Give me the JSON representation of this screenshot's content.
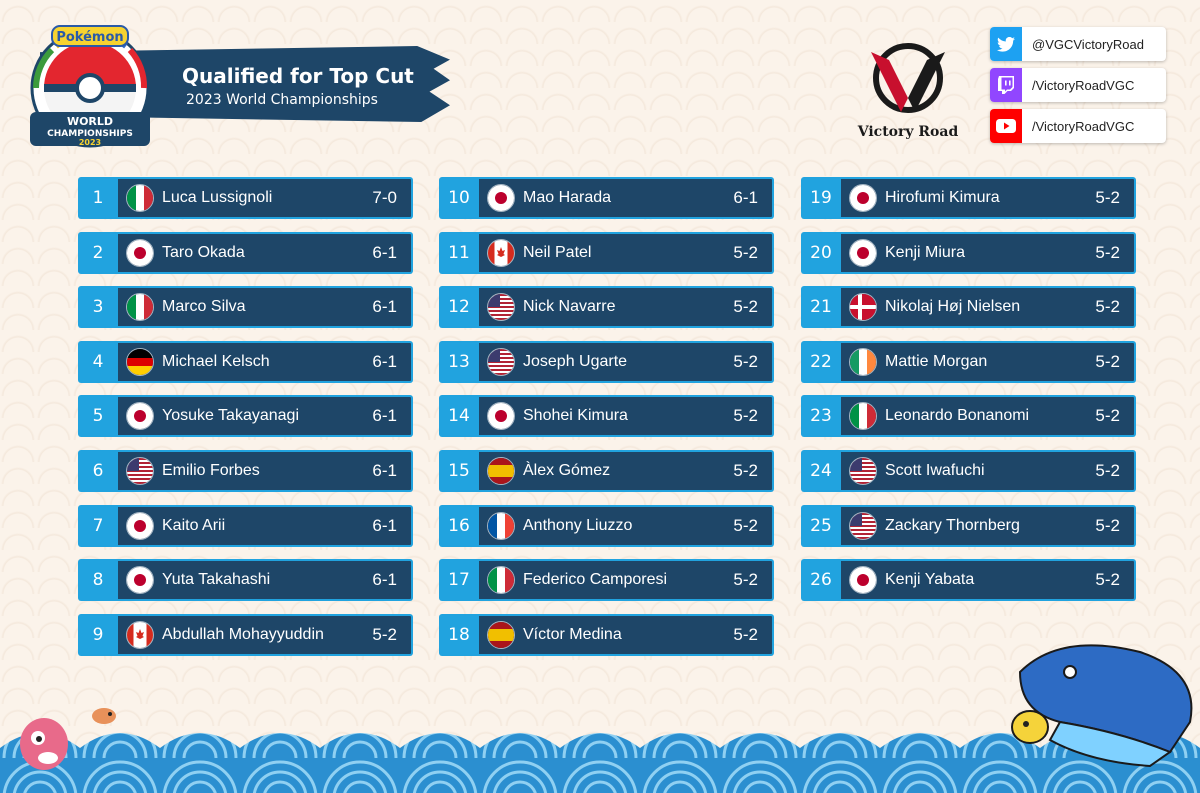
{
  "header": {
    "title": "Qualified for Top Cut",
    "subtitle": "2023 World Championships",
    "event_logo_text": [
      "Pokémon",
      "WORLD",
      "CHAMPIONSHIPS",
      "2023"
    ],
    "brand_logo_text": "Victory Road"
  },
  "social": [
    {
      "icon": "twitter-icon",
      "color": "#1da1f2",
      "handle": "@VGCVictoryRoad"
    },
    {
      "icon": "twitch-icon",
      "color": "#9146ff",
      "handle": "/VictoryRoadVGC"
    },
    {
      "icon": "youtube-icon",
      "color": "#ff0000",
      "handle": "/VictoryRoadVGC"
    }
  ],
  "colors": {
    "rank_bg": "#21a3df",
    "row_bg": "#1e4668",
    "banner": "#1e4668",
    "brand_red": "#c8102e"
  },
  "players": [
    {
      "rank": "1",
      "name": "Luca Lussignoli",
      "record": "7-0",
      "flag": "italy-flag"
    },
    {
      "rank": "2",
      "name": "Taro Okada",
      "record": "6-1",
      "flag": "japan-flag"
    },
    {
      "rank": "3",
      "name": "Marco Silva",
      "record": "6-1",
      "flag": "italy-flag"
    },
    {
      "rank": "4",
      "name": "Michael Kelsch",
      "record": "6-1",
      "flag": "germany-flag"
    },
    {
      "rank": "5",
      "name": "Yosuke Takayanagi",
      "record": "6-1",
      "flag": "japan-flag"
    },
    {
      "rank": "6",
      "name": "Emilio Forbes",
      "record": "6-1",
      "flag": "usa-flag"
    },
    {
      "rank": "7",
      "name": "Kaito Arii",
      "record": "6-1",
      "flag": "japan-flag"
    },
    {
      "rank": "8",
      "name": "Yuta Takahashi",
      "record": "6-1",
      "flag": "japan-flag"
    },
    {
      "rank": "9",
      "name": "Abdullah Mohayyuddin",
      "record": "5-2",
      "flag": "canada-flag"
    },
    {
      "rank": "10",
      "name": "Mao Harada",
      "record": "6-1",
      "flag": "japan-flag"
    },
    {
      "rank": "11",
      "name": "Neil Patel",
      "record": "5-2",
      "flag": "canada-flag"
    },
    {
      "rank": "12",
      "name": "Nick Navarre",
      "record": "5-2",
      "flag": "usa-flag"
    },
    {
      "rank": "13",
      "name": "Joseph Ugarte",
      "record": "5-2",
      "flag": "usa-flag"
    },
    {
      "rank": "14",
      "name": "Shohei Kimura",
      "record": "5-2",
      "flag": "japan-flag"
    },
    {
      "rank": "15",
      "name": "Àlex Gómez",
      "record": "5-2",
      "flag": "spain-flag"
    },
    {
      "rank": "16",
      "name": "Anthony Liuzzo",
      "record": "5-2",
      "flag": "france-flag"
    },
    {
      "rank": "17",
      "name": "Federico Camporesi",
      "record": "5-2",
      "flag": "italy-flag"
    },
    {
      "rank": "18",
      "name": "Víctor Medina",
      "record": "5-2",
      "flag": "spain-flag"
    },
    {
      "rank": "19",
      "name": "Hirofumi Kimura",
      "record": "5-2",
      "flag": "japan-flag"
    },
    {
      "rank": "20",
      "name": "Kenji Miura",
      "record": "5-2",
      "flag": "japan-flag"
    },
    {
      "rank": "21",
      "name": "Nikolaj Høj Nielsen",
      "record": "5-2",
      "flag": "denmark-flag"
    },
    {
      "rank": "22",
      "name": "Mattie Morgan",
      "record": "5-2",
      "flag": "ireland-flag"
    },
    {
      "rank": "23",
      "name": "Leonardo Bonanomi",
      "record": "5-2",
      "flag": "italy-flag"
    },
    {
      "rank": "24",
      "name": "Scott Iwafuchi",
      "record": "5-2",
      "flag": "usa-flag"
    },
    {
      "rank": "25",
      "name": "Zackary Thornberg",
      "record": "5-2",
      "flag": "usa-flag"
    },
    {
      "rank": "26",
      "name": "Kenji Yabata",
      "record": "5-2",
      "flag": "japan-flag"
    }
  ]
}
